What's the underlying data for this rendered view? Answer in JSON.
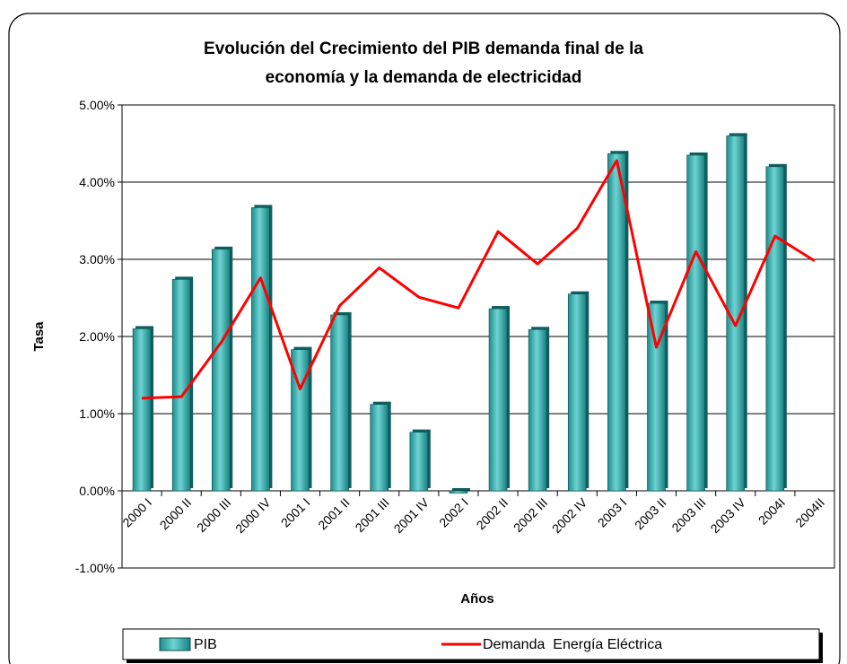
{
  "chart_data": {
    "type": "bar-line",
    "title_lines": [
      "Evolución del Crecimiento del PIB demanda final de la",
      "economía y la demanda de electricidad"
    ],
    "y_label": "Tasa",
    "x_label": "Años",
    "categories": [
      "2000 I",
      "2000 II",
      "2000 III",
      "2000 IV",
      "2001 I",
      "2001 II",
      "2001 III",
      "2001 IV",
      "2002 I",
      "2002 II",
      "2002 III",
      "2002 IV",
      "2003 I",
      "2003 II",
      "2003 III",
      "2003 IV",
      "2004I",
      "2004II"
    ],
    "series": [
      {
        "name": "PIB",
        "kind": "bar",
        "color": "#2aa3a3",
        "values": [
          2.1,
          2.74,
          3.13,
          3.67,
          1.83,
          2.28,
          1.12,
          0.76,
          -0.03,
          2.36,
          2.09,
          2.55,
          4.37,
          2.43,
          4.35,
          4.6,
          4.2,
          null
        ]
      },
      {
        "name": "Demanda  Energía Eléctrica",
        "kind": "line",
        "color": "#ff0000",
        "values": [
          1.2,
          1.22,
          1.92,
          2.76,
          1.32,
          2.4,
          2.89,
          2.51,
          2.37,
          3.36,
          2.94,
          3.4,
          4.28,
          1.86,
          3.1,
          2.14,
          3.3,
          2.98
        ]
      }
    ],
    "ylim": [
      -1,
      5
    ],
    "yticks": [
      {
        "value": -1,
        "label": "-1.00%"
      },
      {
        "value": 0,
        "label": "0.00%"
      },
      {
        "value": 1,
        "label": "1.00%"
      },
      {
        "value": 2,
        "label": "2.00%"
      },
      {
        "value": 3,
        "label": "3.00%"
      },
      {
        "value": 4,
        "label": "4.00%"
      },
      {
        "value": 5,
        "label": "5.00%"
      }
    ],
    "grid": true
  }
}
